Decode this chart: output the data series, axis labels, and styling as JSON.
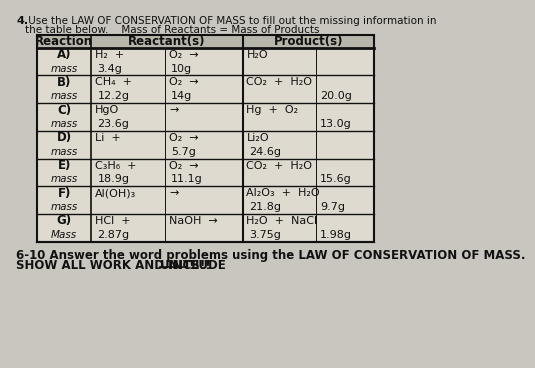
{
  "title_num": "4.",
  "title_line1": " Use the LAW OF CONSERVATION OF MASS to fill out the missing information in",
  "title_line2": "the table below.    Mass of Reactants = Mass of Products",
  "bg_color": "#c8c6be",
  "table_bg": "#dedad0",
  "header_bg": "#b8b5aa",
  "line_color": "#111111",
  "text_color": "#111111",
  "rows": [
    {
      "label": "A)",
      "sub": "mass",
      "r_eq_left": "H₂  +",
      "r_eq_mid": "O₂  →",
      "r_mass_left": "3.4g",
      "r_mass_mid": "10g",
      "p_eq": "H₂O",
      "p_mass_left": "",
      "p_mass_right": ""
    },
    {
      "label": "B)",
      "sub": "mass",
      "r_eq_left": "CH₄  +",
      "r_eq_mid": "O₂  →",
      "r_mass_left": "12.2g",
      "r_mass_mid": "14g",
      "p_eq": "CO₂  +  H₂O",
      "p_mass_left": "",
      "p_mass_right": "20.0g"
    },
    {
      "label": "C)",
      "sub": "mass",
      "r_eq_left": "HgO",
      "r_eq_mid": "→",
      "r_mass_left": "23.6g",
      "r_mass_mid": "",
      "p_eq": "Hg  +  O₂",
      "p_mass_left": "",
      "p_mass_right": "13.0g"
    },
    {
      "label": "D)",
      "sub": "mass",
      "r_eq_left": "Li  +",
      "r_eq_mid": "O₂  →",
      "r_mass_left": "",
      "r_mass_mid": "5.7g",
      "p_eq": "Li₂O",
      "p_mass_left": "24.6g",
      "p_mass_right": ""
    },
    {
      "label": "E)",
      "sub": "mass",
      "r_eq_left": "C₃H₆  +",
      "r_eq_mid": "O₂  →",
      "r_mass_left": "18.9g",
      "r_mass_mid": "11.1g",
      "p_eq": "CO₂  +  H₂O",
      "p_mass_left": "",
      "p_mass_right": "15.6g"
    },
    {
      "label": "F)",
      "sub": "mass",
      "r_eq_left": "Al(OH)₃",
      "r_eq_mid": "→",
      "r_mass_left": "",
      "r_mass_mid": "",
      "p_eq": "Al₂O₃  +  H₂O",
      "p_mass_left": "21.8g",
      "p_mass_right": "9.7g"
    },
    {
      "label": "G)",
      "sub": "Mass",
      "r_eq_left": "HCl  +",
      "r_eq_mid": "NaOH  →",
      "r_mass_left": "2.87g",
      "r_mass_mid": "",
      "p_eq": "H₂O  +  NaCl",
      "p_mass_left": "3.75g",
      "p_mass_right": "1.98g"
    }
  ],
  "footer_bold": "6-10 Answer the word problems using the LAW OF CONSERVATION OF MASS.",
  "footer_bold2": "SHOW ALL WORK AND INCLUDE ",
  "footer_underline": "UNITS",
  "footer_end": " !!!!"
}
